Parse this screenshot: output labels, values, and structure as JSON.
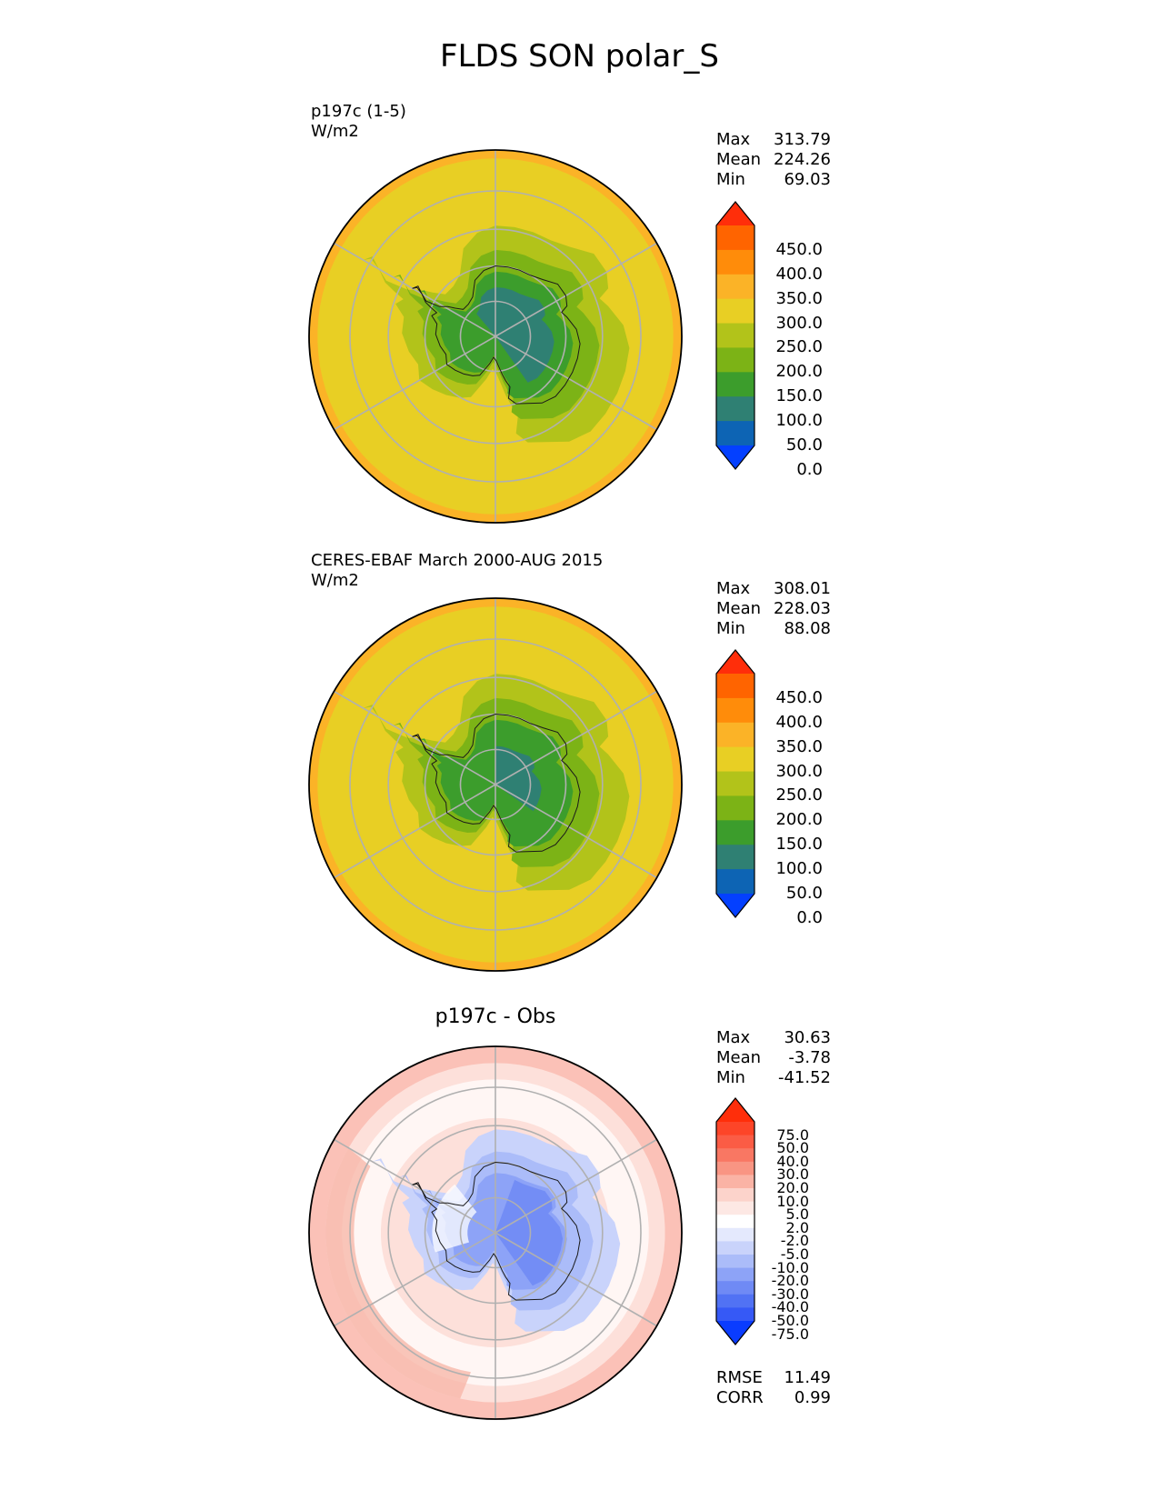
{
  "figure_title": "FLDS SON polar_S",
  "chart_data": [
    {
      "type": "heatmap",
      "projection": "south polar stereographic",
      "title_lines": [
        "p197c (1-5)",
        "W/m2"
      ],
      "stats": [
        {
          "label": "Max",
          "value": "313.79"
        },
        {
          "label": "Mean",
          "value": "224.26"
        },
        {
          "label": "Min",
          "value": "69.03"
        }
      ],
      "colorbar": {
        "ticks": [
          "450.0",
          "400.0",
          "350.0",
          "300.0",
          "250.0",
          "200.0",
          "150.0",
          "100.0",
          "50.0",
          "0.0"
        ],
        "colors": [
          "#ff2e0a",
          "#ff6400",
          "#ff8c0a",
          "#fbb327",
          "#e8cf24",
          "#b2c31a",
          "#7cb316",
          "#3c9d2c",
          "#2f8073",
          "#0d64b4",
          "#0440ff"
        ],
        "extend": "both"
      },
      "field_levels": [
        "#fbb327",
        "#e8cf24",
        "#b2c31a",
        "#7cb316",
        "#3c9d2c",
        "#2f8073"
      ]
    },
    {
      "type": "heatmap",
      "projection": "south polar stereographic",
      "title_lines": [
        "CERES-EBAF March 2000-AUG 2015",
        "W/m2"
      ],
      "stats": [
        {
          "label": "Max",
          "value": "308.01"
        },
        {
          "label": "Mean",
          "value": "228.03"
        },
        {
          "label": "Min",
          "value": "88.08"
        }
      ],
      "colorbar": {
        "ticks": [
          "450.0",
          "400.0",
          "350.0",
          "300.0",
          "250.0",
          "200.0",
          "150.0",
          "100.0",
          "50.0",
          "0.0"
        ],
        "colors": [
          "#ff2e0a",
          "#ff6400",
          "#ff8c0a",
          "#fbb327",
          "#e8cf24",
          "#b2c31a",
          "#7cb316",
          "#3c9d2c",
          "#2f8073",
          "#0d64b4",
          "#0440ff"
        ],
        "extend": "both"
      },
      "field_levels": [
        "#fbb327",
        "#e8cf24",
        "#b2c31a",
        "#7cb316",
        "#3c9d2c",
        "#2f8073"
      ]
    },
    {
      "type": "heatmap",
      "projection": "south polar stereographic",
      "title": "p197c - Obs",
      "stats": [
        {
          "label": "Max",
          "value": "30.63"
        },
        {
          "label": "Mean",
          "value": "-3.78"
        },
        {
          "label": "Min",
          "value": "-41.52"
        }
      ],
      "colorbar": {
        "ticks": [
          "75.0",
          "50.0",
          "40.0",
          "30.0",
          "20.0",
          "10.0",
          "5.0",
          "2.0",
          "-2.0",
          "-5.0",
          "-10.0",
          "-20.0",
          "-30.0",
          "-40.0",
          "-50.0",
          "-75.0"
        ],
        "colors": [
          "#ff2e0a",
          "#fd4528",
          "#fb5c45",
          "#f97763",
          "#f99583",
          "#fab3a5",
          "#fcd3cb",
          "#fde8e4",
          "#ffffff",
          "#e4e9fd",
          "#c9d3fb",
          "#abbcf9",
          "#8da3f7",
          "#6f8af5",
          "#5172f4",
          "#3659f6",
          "#0a3cff"
        ],
        "extend": "both"
      },
      "error_stats": [
        {
          "label": "RMSE",
          "value": "11.49"
        },
        {
          "label": "CORR",
          "value": "0.99"
        }
      ]
    }
  ]
}
